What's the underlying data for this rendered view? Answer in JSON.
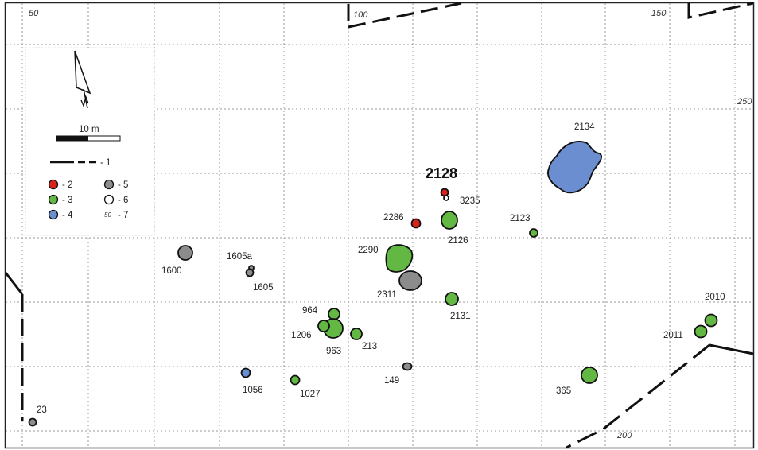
{
  "coords": {
    "c50": "50",
    "c100": "100",
    "c150": "150",
    "c250": "250",
    "c200": "200"
  },
  "legend": {
    "scale": "10 m",
    "items": {
      "1": "- 1",
      "2": "- 2",
      "3": "- 3",
      "4": "- 4",
      "5": "- 5",
      "6": "- 6",
      "7": "- 7",
      "coord_sample": "50"
    }
  },
  "colors": {
    "red": "#d9221c",
    "green": "#63b844",
    "blue": "#6a8ed0",
    "gray": "#8c8c8c",
    "white": "#ffffff"
  },
  "features": {
    "f2128": "2128",
    "f2134": "2134",
    "f3235": "3235",
    "f2286": "2286",
    "f2126": "2126",
    "f2123": "2123",
    "f2290": "2290",
    "f2311": "2311",
    "f2131": "2131",
    "f1600": "1600",
    "f1605a": "1605a",
    "f1605": "1605",
    "f964": "964",
    "f1206": "1206",
    "f963": "963",
    "f213": "213",
    "f149": "149",
    "f1056": "1056",
    "f1027": "1027",
    "f365": "365",
    "f2010": "2010",
    "f2011": "2011",
    "f23": "23"
  }
}
